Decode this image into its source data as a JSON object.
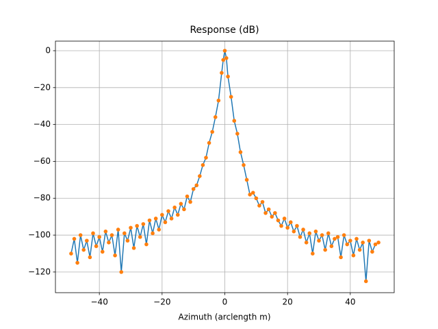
{
  "chart_data": {
    "type": "line",
    "title": "Response (dB)",
    "x_label": "Azimuth (arclength m)",
    "x": [
      -49,
      -48,
      -47,
      -46,
      -45,
      -44,
      -43,
      -42,
      -41,
      -40,
      -39,
      -38,
      -37,
      -36,
      -35,
      -34,
      -33,
      -32,
      -31,
      -30,
      -29,
      -28,
      -27,
      -26,
      -25,
      -24,
      -23,
      -22,
      -21,
      -20,
      -19,
      -18,
      -17,
      -16,
      -15,
      -14,
      -13,
      -12,
      -11,
      -10,
      -9,
      -8,
      -7,
      -6,
      -5,
      -4,
      -3,
      -2,
      -1,
      -0.5,
      0,
      0.5,
      1,
      2,
      3,
      4,
      5,
      6,
      7,
      8,
      9,
      10,
      11,
      12,
      13,
      14,
      15,
      16,
      17,
      18,
      19,
      20,
      21,
      22,
      23,
      24,
      25,
      26,
      27,
      28,
      29,
      30,
      31,
      32,
      33,
      34,
      35,
      36,
      37,
      38,
      39,
      40,
      41,
      42,
      43,
      44,
      45,
      46,
      47,
      48,
      49
    ],
    "values": [
      -110,
      -102,
      -115,
      -100,
      -108,
      -103,
      -112,
      -99,
      -106,
      -101,
      -109,
      -98,
      -104,
      -100,
      -111,
      -97,
      -120,
      -99,
      -103,
      -96,
      -107,
      -95,
      -101,
      -94,
      -105,
      -92,
      -99,
      -91,
      -97,
      -89,
      -93,
      -87,
      -91,
      -85,
      -89,
      -83,
      -86,
      -79,
      -82,
      -75,
      -73,
      -68,
      -62,
      -58,
      -50,
      -44,
      -36,
      -27,
      -12,
      -5,
      0,
      -4,
      -14,
      -25,
      -38,
      -45,
      -55,
      -62,
      -70,
      -78,
      -77,
      -80,
      -84,
      -82,
      -88,
      -86,
      -90,
      -88,
      -92,
      -95,
      -91,
      -96,
      -93,
      -98,
      -95,
      -101,
      -97,
      -104,
      -99,
      -110,
      -98,
      -103,
      -100,
      -108,
      -99,
      -106,
      -102,
      -101,
      -112,
      -100,
      -105,
      -103,
      -111,
      -102,
      -108,
      -104,
      -125,
      -103,
      -109,
      -105,
      -104
    ],
    "line_color": "#1f77b4",
    "marker_color": "#ff7f0e",
    "xlim": [
      -54,
      54
    ],
    "ylim": [
      -131.2,
      5.2
    ],
    "xticks": [
      {
        "value": -40,
        "label": "−40"
      },
      {
        "value": -20,
        "label": "−20"
      },
      0,
      20,
      40
    ],
    "yticks": [
      0,
      {
        "value": -20,
        "label": "−20"
      },
      {
        "value": -40,
        "label": "−40"
      },
      {
        "value": -60,
        "label": "−60"
      },
      {
        "value": -80,
        "label": "−80"
      },
      {
        "value": -100,
        "label": "−100"
      },
      {
        "value": -120,
        "label": "−120"
      }
    ],
    "grid": true
  }
}
